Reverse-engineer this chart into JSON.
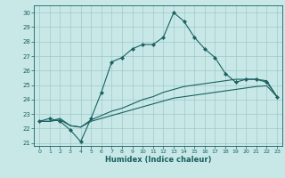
{
  "xlabel": "Humidex (Indice chaleur)",
  "bg_color": "#c8e8e8",
  "grid_color": "#a0c8c8",
  "line_color": "#1a6060",
  "x_ticks": [
    0,
    1,
    2,
    3,
    4,
    5,
    6,
    7,
    8,
    9,
    10,
    11,
    12,
    13,
    14,
    15,
    16,
    17,
    18,
    19,
    20,
    21,
    22,
    23
  ],
  "y_ticks": [
    21,
    22,
    23,
    24,
    25,
    26,
    27,
    28,
    29,
    30
  ],
  "ylim": [
    20.8,
    30.5
  ],
  "xlim": [
    -0.5,
    23.5
  ],
  "series1_x": [
    0,
    1,
    2,
    3,
    4,
    5,
    6,
    7,
    8,
    9,
    10,
    11,
    12,
    13,
    14,
    15,
    16,
    17,
    18,
    19,
    20,
    21,
    22,
    23
  ],
  "series1_y": [
    22.5,
    22.7,
    22.5,
    21.9,
    21.1,
    22.7,
    24.5,
    26.6,
    26.9,
    27.5,
    27.8,
    27.8,
    28.3,
    30.0,
    29.4,
    28.3,
    27.5,
    26.9,
    25.8,
    25.2,
    25.4,
    25.4,
    25.2,
    24.2
  ],
  "series2_x": [
    0,
    1,
    2,
    3,
    4,
    5,
    6,
    7,
    8,
    9,
    10,
    11,
    12,
    13,
    14,
    15,
    16,
    17,
    18,
    19,
    20,
    21,
    22,
    23
  ],
  "series2_y": [
    22.5,
    22.5,
    22.6,
    22.2,
    22.1,
    22.5,
    22.7,
    22.9,
    23.1,
    23.3,
    23.5,
    23.7,
    23.9,
    24.1,
    24.2,
    24.3,
    24.4,
    24.5,
    24.6,
    24.7,
    24.8,
    24.9,
    24.95,
    24.2
  ],
  "series3_x": [
    0,
    1,
    2,
    3,
    4,
    5,
    6,
    7,
    8,
    9,
    10,
    11,
    12,
    13,
    14,
    15,
    16,
    17,
    18,
    19,
    20,
    21,
    22,
    23
  ],
  "series3_y": [
    22.5,
    22.5,
    22.7,
    22.2,
    22.1,
    22.6,
    22.9,
    23.2,
    23.4,
    23.7,
    24.0,
    24.2,
    24.5,
    24.7,
    24.9,
    25.0,
    25.1,
    25.2,
    25.3,
    25.4,
    25.4,
    25.4,
    25.3,
    24.2
  ]
}
